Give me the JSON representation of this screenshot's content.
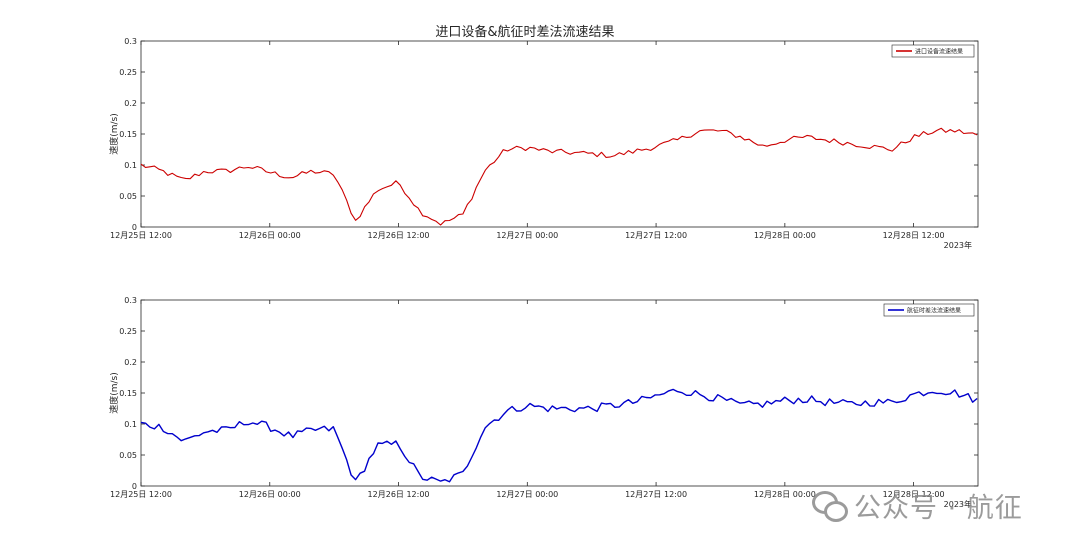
{
  "figure_title": "进口设备&航征时差法流速结果",
  "watermark": {
    "text": "公众号 · 航征",
    "icon": "wechat-icon"
  },
  "colors": {
    "series_top": "#cc0000",
    "series_bottom": "#0000cc",
    "axis": "#262626"
  },
  "chart_data": [
    {
      "type": "line",
      "title": "进口设备&航征时差法流速结果",
      "xlabel": "",
      "ylabel": "速度(m/s)",
      "ylim": [
        0,
        0.3
      ],
      "yticks": [
        0,
        0.05,
        0.1,
        0.15,
        0.2,
        0.25,
        0.3
      ],
      "ytick_labels": [
        "0",
        "0.05",
        "0.1",
        "0.15",
        "0.2",
        "0.25",
        "0.3"
      ],
      "xlim": [
        "2023-12-25 12:00",
        "2023-12-28 18:00"
      ],
      "xticks": [
        "2023-12-25 12:00",
        "2023-12-26 00:00",
        "2023-12-26 12:00",
        "2023-12-27 00:00",
        "2023-12-27 12:00",
        "2023-12-28 00:00",
        "2023-12-28 12:00"
      ],
      "xtick_labels": [
        "12月25日 12:00",
        "12月26日 00:00",
        "12月26日 12:00",
        "12月27日 00:00",
        "12月27日 12:00",
        "12月28日 00:00",
        "12月28日 12:00"
      ],
      "x_year_label": "2023年",
      "grid": false,
      "legend_position": "top-right",
      "series": [
        {
          "name": "进口设备流速结果",
          "color": "#cc0000",
          "x": [
            "2023-12-25 12:00",
            "2023-12-25 14:00",
            "2023-12-25 16:00",
            "2023-12-25 18:00",
            "2023-12-25 20:00",
            "2023-12-25 22:00",
            "2023-12-26 00:00",
            "2023-12-26 02:00",
            "2023-12-26 04:00",
            "2023-12-26 06:00",
            "2023-12-26 08:00",
            "2023-12-26 10:00",
            "2023-12-26 12:00",
            "2023-12-26 14:00",
            "2023-12-26 16:00",
            "2023-12-26 18:00",
            "2023-12-26 20:00",
            "2023-12-26 22:00",
            "2023-12-27 00:00",
            "2023-12-27 02:00",
            "2023-12-27 04:00",
            "2023-12-27 06:00",
            "2023-12-27 08:00",
            "2023-12-27 10:00",
            "2023-12-27 12:00",
            "2023-12-27 14:00",
            "2023-12-27 16:00",
            "2023-12-27 18:00",
            "2023-12-27 20:00",
            "2023-12-27 22:00",
            "2023-12-28 00:00",
            "2023-12-28 02:00",
            "2023-12-28 04:00",
            "2023-12-28 06:00",
            "2023-12-28 08:00",
            "2023-12-28 10:00",
            "2023-12-28 12:00",
            "2023-12-28 14:00",
            "2023-12-28 16:00",
            "2023-12-28 18:00"
          ],
          "values": [
            0.1,
            0.09,
            0.075,
            0.09,
            0.09,
            0.098,
            0.088,
            0.08,
            0.09,
            0.085,
            0.01,
            0.06,
            0.072,
            0.025,
            0.005,
            0.02,
            0.09,
            0.125,
            0.128,
            0.122,
            0.12,
            0.118,
            0.115,
            0.122,
            0.13,
            0.14,
            0.155,
            0.155,
            0.145,
            0.13,
            0.14,
            0.145,
            0.14,
            0.135,
            0.13,
            0.125,
            0.145,
            0.155,
            0.155,
            0.148
          ]
        },
        {
          "name": "",
          "color": "",
          "x": [],
          "values": []
        }
      ]
    },
    {
      "type": "line",
      "title": "",
      "xlabel": "",
      "ylabel": "速度(m/s)",
      "ylim": [
        0,
        0.3
      ],
      "yticks": [
        0,
        0.05,
        0.1,
        0.15,
        0.2,
        0.25,
        0.3
      ],
      "ytick_labels": [
        "0",
        "0.05",
        "0.1",
        "0.15",
        "0.2",
        "0.25",
        "0.3"
      ],
      "xlim": [
        "2023-12-25 12:00",
        "2023-12-28 18:00"
      ],
      "xticks": [
        "2023-12-25 12:00",
        "2023-12-26 00:00",
        "2023-12-26 12:00",
        "2023-12-27 00:00",
        "2023-12-27 12:00",
        "2023-12-28 00:00",
        "2023-12-28 12:00"
      ],
      "xtick_labels": [
        "12月25日 12:00",
        "12月26日 00:00",
        "12月26日 12:00",
        "12月27日 00:00",
        "12月27日 12:00",
        "12月28日 00:00",
        "12月28日 12:00"
      ],
      "x_year_label": "2023年",
      "grid": false,
      "legend_position": "top-right",
      "series": [
        {
          "name": "航征时差法流速结果",
          "color": "#0000cc",
          "x": [
            "2023-12-25 12:00",
            "2023-12-25 14:00",
            "2023-12-25 16:00",
            "2023-12-25 18:00",
            "2023-12-25 20:00",
            "2023-12-25 22:00",
            "2023-12-26 00:00",
            "2023-12-26 02:00",
            "2023-12-26 04:00",
            "2023-12-26 06:00",
            "2023-12-26 08:00",
            "2023-12-26 10:00",
            "2023-12-26 12:00",
            "2023-12-26 14:00",
            "2023-12-26 16:00",
            "2023-12-26 18:00",
            "2023-12-26 20:00",
            "2023-12-26 22:00",
            "2023-12-27 00:00",
            "2023-12-27 02:00",
            "2023-12-27 04:00",
            "2023-12-27 06:00",
            "2023-12-27 08:00",
            "2023-12-27 10:00",
            "2023-12-27 12:00",
            "2023-12-27 14:00",
            "2023-12-27 16:00",
            "2023-12-27 18:00",
            "2023-12-27 20:00",
            "2023-12-27 22:00",
            "2023-12-28 00:00",
            "2023-12-28 02:00",
            "2023-12-28 04:00",
            "2023-12-28 06:00",
            "2023-12-28 08:00",
            "2023-12-28 10:00",
            "2023-12-28 12:00",
            "2023-12-28 14:00",
            "2023-12-28 16:00",
            "2023-12-28 18:00"
          ],
          "values": [
            0.1,
            0.095,
            0.072,
            0.088,
            0.09,
            0.105,
            0.095,
            0.08,
            0.09,
            0.092,
            0.005,
            0.065,
            0.068,
            0.015,
            0.005,
            0.02,
            0.095,
            0.12,
            0.13,
            0.125,
            0.125,
            0.125,
            0.13,
            0.135,
            0.145,
            0.155,
            0.148,
            0.14,
            0.13,
            0.132,
            0.138,
            0.14,
            0.135,
            0.132,
            0.135,
            0.135,
            0.148,
            0.155,
            0.15,
            0.138
          ]
        },
        {
          "name": "",
          "color": "",
          "x": [],
          "values": []
        }
      ]
    }
  ]
}
